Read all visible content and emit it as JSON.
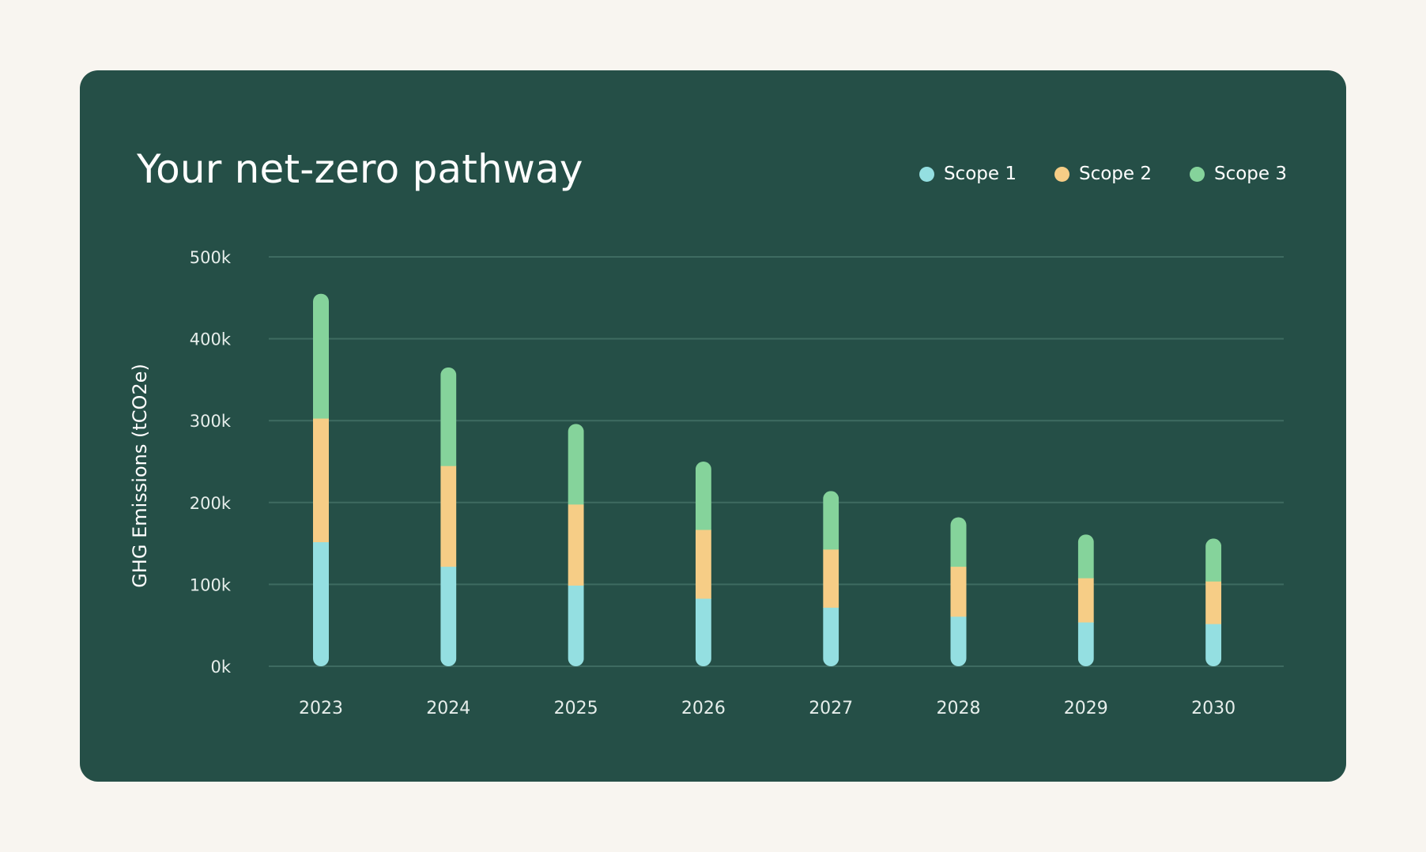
{
  "colors": {
    "page_background": "#f8f5f0",
    "card_background": "#254f47",
    "scope1": "#94dfe1",
    "scope2": "#f6cd86",
    "scope3": "#85d39b",
    "gridline": "#3e6b61",
    "text": "#ffffff",
    "tick_text": "#e6eeeb"
  },
  "chart_data": {
    "type": "bar",
    "stacked": true,
    "title": "Your net-zero pathway",
    "xlabel": "",
    "ylabel": "GHG Emissions (tCO2e)",
    "ylim": [
      0,
      500000
    ],
    "yticks": [
      0,
      100000,
      200000,
      300000,
      400000,
      500000
    ],
    "ytick_labels": [
      "0k",
      "100k",
      "200k",
      "300k",
      "400k",
      "500k"
    ],
    "grid": true,
    "legend_position": "top-right",
    "categories": [
      "2023",
      "2024",
      "2025",
      "2026",
      "2027",
      "2028",
      "2029",
      "2030"
    ],
    "series": [
      {
        "name": "Scope 1",
        "color": "#94dfe1",
        "values": [
          152000,
          122000,
          99000,
          83000,
          72000,
          61000,
          54000,
          52000
        ]
      },
      {
        "name": "Scope 2",
        "color": "#f6cd86",
        "values": [
          151000,
          123000,
          99000,
          84000,
          71000,
          61000,
          54000,
          52000
        ]
      },
      {
        "name": "Scope 3",
        "color": "#85d39b",
        "values": [
          152000,
          120000,
          98000,
          83000,
          71000,
          60000,
          53000,
          52000
        ]
      }
    ]
  }
}
